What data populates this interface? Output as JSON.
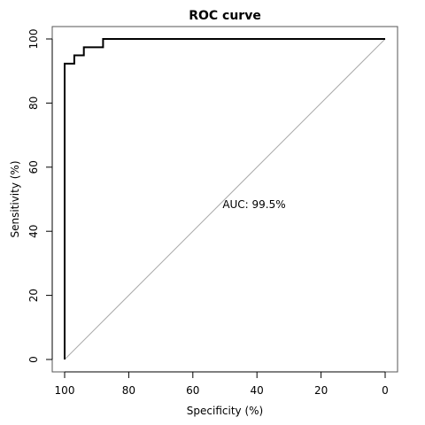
{
  "chart_data": {
    "type": "line",
    "title": "ROC curve",
    "xlabel": "Specificity (%)",
    "ylabel": "Sensitivity (%)",
    "xlim": [
      100,
      0
    ],
    "ylim": [
      0,
      100
    ],
    "x_ticks": [
      100,
      80,
      60,
      40,
      20,
      0
    ],
    "y_ticks": [
      0,
      20,
      40,
      60,
      80,
      100
    ],
    "grid": false,
    "series": [
      {
        "type": "step",
        "x": [
          100,
          100,
          97,
          97,
          94,
          94,
          88,
          88,
          0
        ],
        "y": [
          0,
          92.3,
          92.3,
          94.9,
          94.9,
          97.4,
          97.4,
          100,
          100
        ],
        "color": "#000000"
      }
    ],
    "reference_line": {
      "from": [
        100,
        0
      ],
      "to": [
        0,
        100
      ],
      "color": "#aaaaaa"
    },
    "annotation": "AUC: 99.5%"
  }
}
